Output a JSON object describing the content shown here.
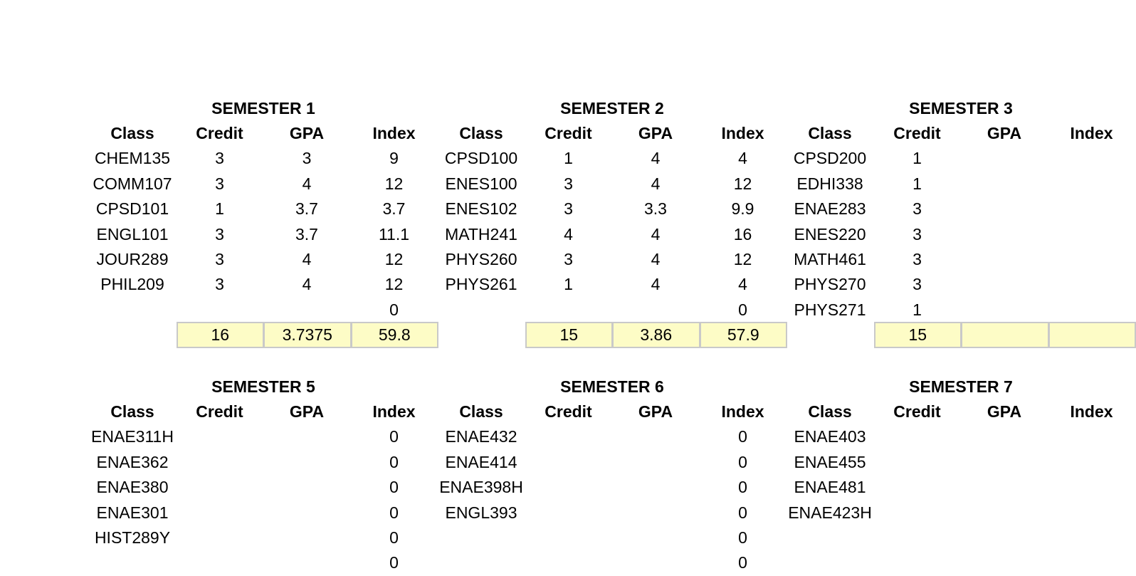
{
  "headers": [
    "Class",
    "Credit",
    "GPA",
    "Index"
  ],
  "top": {
    "semesters": [
      {
        "title": "SEMESTER 1",
        "rows": [
          [
            "CHEM135",
            "3",
            "3",
            "9"
          ],
          [
            "COMM107",
            "3",
            "4",
            "12"
          ],
          [
            "CPSD101",
            "1",
            "3.7",
            "3.7"
          ],
          [
            "ENGL101",
            "3",
            "3.7",
            "11.1"
          ],
          [
            "JOUR289",
            "3",
            "4",
            "12"
          ],
          [
            "PHIL209",
            "3",
            "4",
            "12"
          ],
          [
            "",
            "",
            "",
            "0"
          ]
        ],
        "totals": [
          "16",
          "3.7375",
          "59.8"
        ]
      },
      {
        "title": "SEMESTER 2",
        "rows": [
          [
            "CPSD100",
            "1",
            "4",
            "4"
          ],
          [
            "ENES100",
            "3",
            "4",
            "12"
          ],
          [
            "ENES102",
            "3",
            "3.3",
            "9.9"
          ],
          [
            "MATH241",
            "4",
            "4",
            "16"
          ],
          [
            "PHYS260",
            "3",
            "4",
            "12"
          ],
          [
            "PHYS261",
            "1",
            "4",
            "4"
          ],
          [
            "",
            "",
            "",
            "0"
          ]
        ],
        "totals": [
          "15",
          "3.86",
          "57.9"
        ]
      },
      {
        "title": "SEMESTER 3",
        "rows": [
          [
            "CPSD200",
            "1",
            "",
            ""
          ],
          [
            "EDHI338",
            "1",
            "",
            ""
          ],
          [
            "ENAE283",
            "3",
            "",
            ""
          ],
          [
            "ENES220",
            "3",
            "",
            ""
          ],
          [
            "MATH461",
            "3",
            "",
            ""
          ],
          [
            "PHYS270",
            "3",
            "",
            ""
          ],
          [
            "PHYS271",
            "1",
            "",
            ""
          ]
        ],
        "totals": [
          "15",
          "",
          ""
        ]
      }
    ]
  },
  "bottom": {
    "semesters": [
      {
        "title": "SEMESTER 5",
        "rows": [
          [
            "ENAE311H",
            "",
            "",
            "0"
          ],
          [
            "ENAE362",
            "",
            "",
            "0"
          ],
          [
            "ENAE380",
            "",
            "",
            "0"
          ],
          [
            "ENAE301",
            "",
            "",
            "0"
          ],
          [
            "HIST289Y",
            "",
            "",
            "0"
          ],
          [
            "",
            "",
            "",
            "0"
          ]
        ]
      },
      {
        "title": "SEMESTER 6",
        "rows": [
          [
            "ENAE432",
            "",
            "",
            "0"
          ],
          [
            "ENAE414",
            "",
            "",
            "0"
          ],
          [
            "ENAE398H",
            "",
            "",
            "0"
          ],
          [
            "ENGL393",
            "",
            "",
            "0"
          ],
          [
            "",
            "",
            "",
            "0"
          ],
          [
            "",
            "",
            "",
            "0"
          ]
        ]
      },
      {
        "title": "SEMESTER 7",
        "rows": [
          [
            "ENAE403",
            "",
            "",
            ""
          ],
          [
            "ENAE455",
            "",
            "",
            ""
          ],
          [
            "ENAE481",
            "",
            "",
            ""
          ],
          [
            "ENAE423H",
            "",
            "",
            ""
          ],
          [
            "",
            "",
            "",
            ""
          ],
          [
            "",
            "",
            "",
            ""
          ]
        ]
      }
    ]
  }
}
